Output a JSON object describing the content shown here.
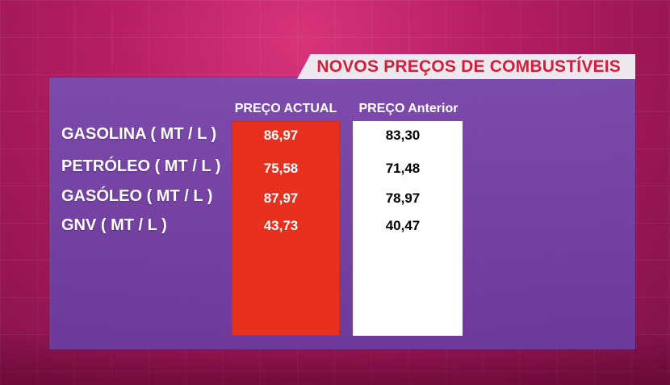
{
  "title": "NOVOS PREÇOS DE COMBUSTÍVEIS",
  "columns": {
    "actual": "PREÇO ACTUAL",
    "anterior": "PREÇO Anterior"
  },
  "rows": [
    {
      "label": "GASOLINA ( MT / L )",
      "actual": "86,97",
      "anterior": "83,30"
    },
    {
      "label": "PETRÓLEO ( MT / L )",
      "actual": "75,58",
      "anterior": "71,48"
    },
    {
      "label": "GASÓLEO ( MT / L )",
      "actual": "87,97",
      "anterior": "78,97"
    },
    {
      "label": "GNV ( MT / L )",
      "actual": "43,73",
      "anterior": "40,47"
    }
  ],
  "colors": {
    "background": "#b81f63",
    "panel": "#774ab0",
    "actual_column": "#e8301f",
    "anterior_column": "#ffffff",
    "title_text": "#cf1f3c"
  }
}
